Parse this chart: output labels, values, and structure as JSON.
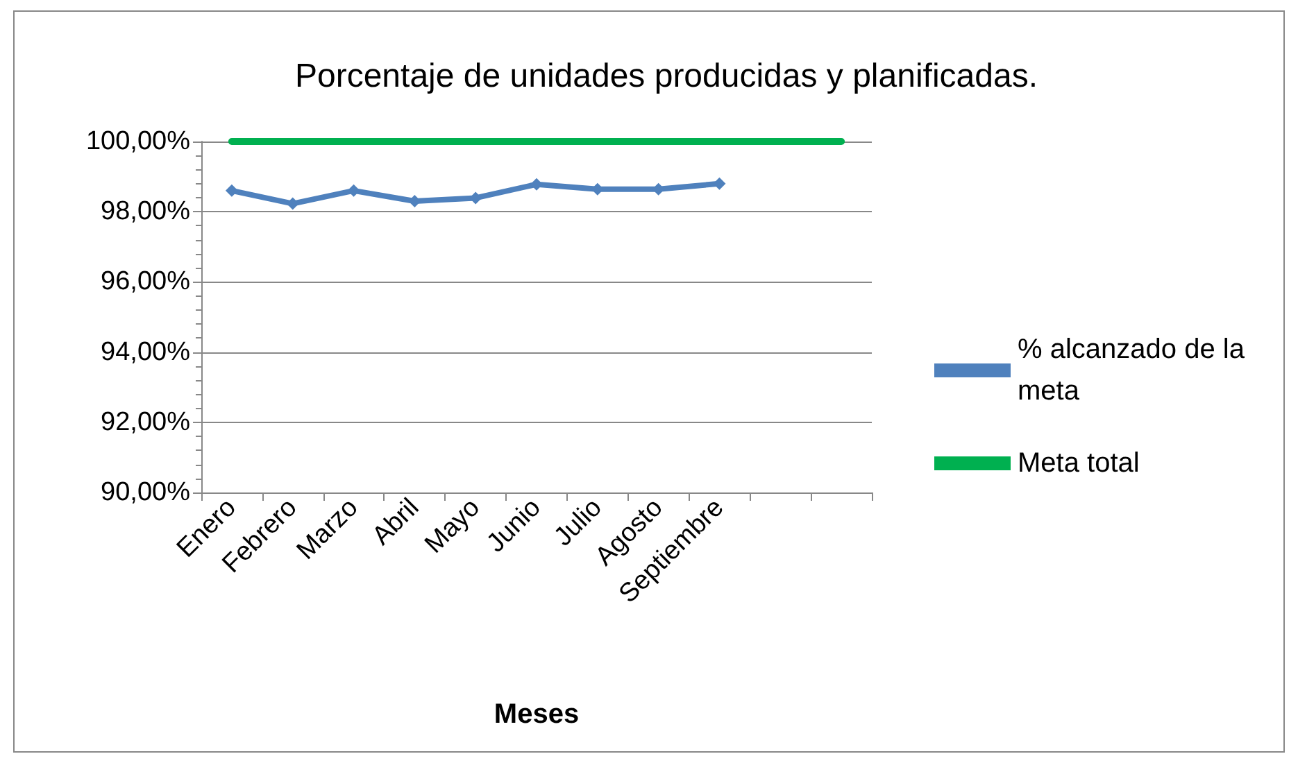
{
  "chart_data": {
    "type": "line",
    "title": "Porcentaje de unidades producidas y planificadas.",
    "xlabel": "Meses",
    "categories": [
      "Enero",
      "Febrero",
      "Marzo",
      "Abril",
      "Mayo",
      "Junio",
      "Julio",
      "Agosto",
      "Septiembre",
      null,
      null
    ],
    "series": [
      {
        "name": "% alcanzado de la meta",
        "color": "#4f81bd",
        "marker": "diamond",
        "values": [
          98.6,
          98.23,
          98.6,
          98.3,
          98.39,
          98.78,
          98.64,
          98.64,
          98.8,
          null,
          null
        ]
      },
      {
        "name": "Meta total",
        "color": "#00b050",
        "marker": "none",
        "values": [
          100,
          100,
          100,
          100,
          100,
          100,
          100,
          100,
          100,
          100,
          100
        ]
      }
    ],
    "ylim": [
      90,
      100
    ],
    "yticks": [
      {
        "value": 90,
        "label": "90,00%"
      },
      {
        "value": 92,
        "label": "92,00%"
      },
      {
        "value": 94,
        "label": "94,00%"
      },
      {
        "value": 96,
        "label": "96,00%"
      },
      {
        "value": 98,
        "label": "98,00%"
      },
      {
        "value": 100,
        "label": "100,00%"
      }
    ],
    "grid": "y",
    "legend": "right"
  }
}
